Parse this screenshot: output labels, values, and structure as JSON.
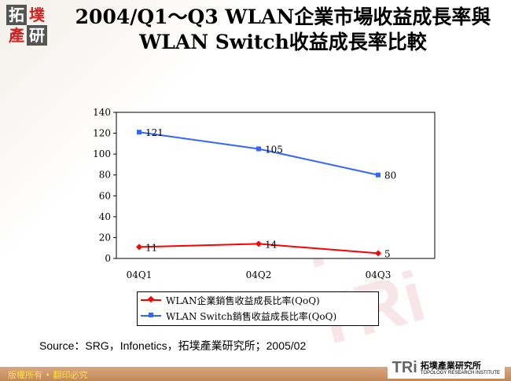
{
  "logo": {
    "chars": [
      "拓",
      "墣",
      "產",
      "研"
    ]
  },
  "title": {
    "line1": "2004/Q1～Q3 WLAN企業市場收益成長率與",
    "line2": "WLAN Switch收益成長率比較"
  },
  "chart_data": {
    "type": "line",
    "categories": [
      "04Q1",
      "04Q2",
      "04Q3"
    ],
    "ylim": [
      0,
      140
    ],
    "yticks": [
      0,
      20,
      40,
      60,
      80,
      100,
      120,
      140
    ],
    "grid": false,
    "legend_position": "bottom",
    "series": [
      {
        "name": "WLAN企業銷售收益成長比率(QoQ)",
        "values": [
          11,
          14,
          5
        ],
        "color": "#ff0000",
        "marker": "diamond"
      },
      {
        "name": "WLAN Switch銷售收益成長比率(QoQ)",
        "values": [
          121,
          105,
          80
        ],
        "color": "#3366ff",
        "marker": "square"
      }
    ]
  },
  "source": "Source：SRG，Infonetics，拓墣產業研究所；2005/02",
  "footer": {
    "copyright": "版權所有 • 翻印必究",
    "org_name": "拓墣產業研究所",
    "org_en": "TOPOLOGY RESEARCH INSTITUTE",
    "org_abbr": "TRi"
  }
}
